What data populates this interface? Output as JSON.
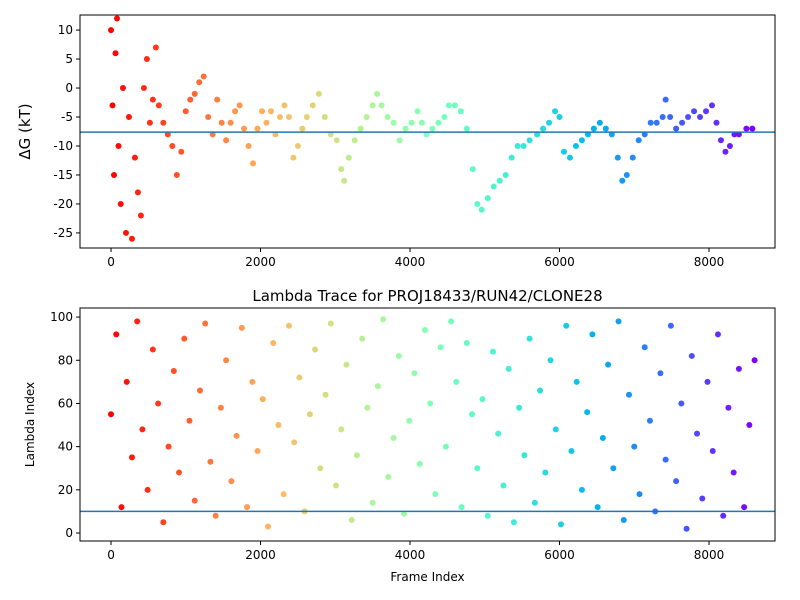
{
  "chart_data": [
    {
      "type": "scatter",
      "ylabel": "ΔG (kT)",
      "colormap": "rainbow_r",
      "hline": -7.6,
      "hline_color": "#1f77b4",
      "xlim": [
        -415,
        8883
      ],
      "ylim": [
        -27.6,
        12.6
      ],
      "xticks": [
        0,
        2000,
        4000,
        6000,
        8000
      ],
      "yticks": [
        -25,
        -20,
        -15,
        -10,
        -5,
        0,
        5,
        10
      ],
      "x": [
        0,
        20,
        40,
        60,
        80,
        100,
        130,
        160,
        200,
        240,
        280,
        320,
        360,
        400,
        440,
        480,
        520,
        560,
        600,
        640,
        700,
        760,
        820,
        880,
        940,
        1000,
        1060,
        1120,
        1180,
        1240,
        1300,
        1360,
        1420,
        1480,
        1540,
        1600,
        1660,
        1720,
        1780,
        1840,
        1900,
        1960,
        2020,
        2080,
        2140,
        2200,
        2260,
        2320,
        2380,
        2440,
        2500,
        2560,
        2620,
        2700,
        2780,
        2860,
        2940,
        3020,
        3080,
        3120,
        3180,
        3260,
        3340,
        3420,
        3500,
        3560,
        3620,
        3700,
        3780,
        3860,
        3940,
        4020,
        4100,
        4160,
        4220,
        4300,
        4380,
        4460,
        4520,
        4600,
        4680,
        4760,
        4840,
        4900,
        4960,
        5040,
        5120,
        5200,
        5280,
        5360,
        5440,
        5520,
        5600,
        5700,
        5780,
        5860,
        5940,
        6000,
        6060,
        6140,
        6220,
        6300,
        6380,
        6460,
        6540,
        6620,
        6700,
        6780,
        6840,
        6900,
        6980,
        7060,
        7140,
        7220,
        7300,
        7380,
        7420,
        7480,
        7560,
        7640,
        7720,
        7800,
        7880,
        7960,
        8040,
        8100,
        8160,
        8220,
        8280,
        8340,
        8400,
        8500,
        8580
      ],
      "values": [
        10,
        -3,
        -15,
        6,
        12,
        -10,
        -20,
        0,
        -25,
        -5,
        -26,
        -12,
        -18,
        -22,
        0,
        5,
        -6,
        -2,
        7,
        -3,
        -6,
        -8,
        -10,
        -15,
        -11,
        -4,
        -2,
        -1,
        1,
        2,
        -5,
        -8,
        -2,
        -6,
        -9,
        -6,
        -4,
        -3,
        -7,
        -10,
        -13,
        -7,
        -4,
        -6,
        -4,
        -8,
        -5,
        -3,
        -5,
        -12,
        -10,
        -7,
        -5,
        -3,
        -1,
        -5,
        -8,
        -9,
        -14,
        -16,
        -12,
        -9,
        -7,
        -5,
        -3,
        -1,
        -3,
        -5,
        -6,
        -9,
        -7,
        -6,
        -4,
        -6,
        -8,
        -7,
        -6,
        -5,
        -3,
        -3,
        -4,
        -7,
        -14,
        -20,
        -21,
        -19,
        -17,
        -16,
        -15,
        -12,
        -10,
        -10,
        -9,
        -8,
        -7,
        -6,
        -4,
        -5,
        -11,
        -12,
        -10,
        -9,
        -8,
        -7,
        -6,
        -7,
        -8,
        -12,
        -16,
        -15,
        -12,
        -9,
        -8,
        -6,
        -6,
        -5,
        -2,
        -5,
        -7,
        -6,
        -5,
        -4,
        -5,
        -4,
        -3,
        -6,
        -9,
        -11,
        -10,
        -8,
        -8,
        -7,
        -7
      ]
    },
    {
      "type": "scatter",
      "title": "Lambda Trace for PROJ18433/RUN42/CLONE28",
      "xlabel": "Frame Index",
      "ylabel": "Lambda Index",
      "colormap": "rainbow_r",
      "hline": 10,
      "hline_color": "#1f77b4",
      "xlim": [
        -415,
        8883
      ],
      "ylim": [
        -3.7,
        104.2
      ],
      "xticks": [
        0,
        2000,
        4000,
        6000,
        8000
      ],
      "yticks": [
        0,
        20,
        40,
        60,
        80,
        100
      ],
      "x": [
        0,
        70,
        140,
        210,
        280,
        350,
        420,
        490,
        560,
        630,
        700,
        770,
        840,
        910,
        980,
        1050,
        1120,
        1190,
        1260,
        1330,
        1400,
        1470,
        1540,
        1610,
        1680,
        1750,
        1820,
        1890,
        1960,
        2030,
        2100,
        2170,
        2240,
        2310,
        2380,
        2450,
        2520,
        2590,
        2660,
        2730,
        2800,
        2870,
        2940,
        3010,
        3080,
        3150,
        3220,
        3290,
        3360,
        3430,
        3500,
        3570,
        3640,
        3710,
        3780,
        3850,
        3920,
        3990,
        4060,
        4130,
        4200,
        4270,
        4340,
        4410,
        4480,
        4550,
        4620,
        4690,
        4760,
        4830,
        4900,
        4970,
        5040,
        5110,
        5180,
        5250,
        5320,
        5390,
        5460,
        5530,
        5600,
        5670,
        5740,
        5810,
        5880,
        5950,
        6020,
        6090,
        6160,
        6230,
        6300,
        6370,
        6440,
        6510,
        6580,
        6650,
        6720,
        6790,
        6860,
        6930,
        7000,
        7070,
        7140,
        7210,
        7280,
        7350,
        7420,
        7490,
        7560,
        7630,
        7700,
        7770,
        7840,
        7910,
        7980,
        8050,
        8120,
        8190,
        8260,
        8330,
        8400,
        8470,
        8540,
        8610
      ],
      "values": [
        55,
        92,
        12,
        70,
        35,
        98,
        48,
        20,
        85,
        60,
        5,
        40,
        75,
        28,
        90,
        52,
        15,
        66,
        97,
        33,
        8,
        58,
        80,
        24,
        45,
        95,
        12,
        70,
        38,
        62,
        3,
        88,
        50,
        18,
        96,
        42,
        72,
        10,
        55,
        85,
        30,
        64,
        97,
        22,
        48,
        78,
        6,
        36,
        90,
        58,
        14,
        68,
        99,
        26,
        44,
        82,
        9,
        52,
        74,
        32,
        94,
        60,
        18,
        86,
        40,
        98,
        70,
        12,
        88,
        55,
        30,
        62,
        8,
        84,
        46,
        22,
        76,
        5,
        58,
        36,
        90,
        14,
        66,
        28,
        80,
        48,
        4,
        96,
        38,
        70,
        20,
        56,
        92,
        12,
        44,
        78,
        30,
        98,
        6,
        64,
        40,
        18,
        86,
        52,
        10,
        74,
        34,
        96,
        24,
        60,
        2,
        82,
        46,
        16,
        70,
        38,
        92,
        8,
        58,
        28,
        76,
        12,
        50,
        80
      ]
    }
  ]
}
